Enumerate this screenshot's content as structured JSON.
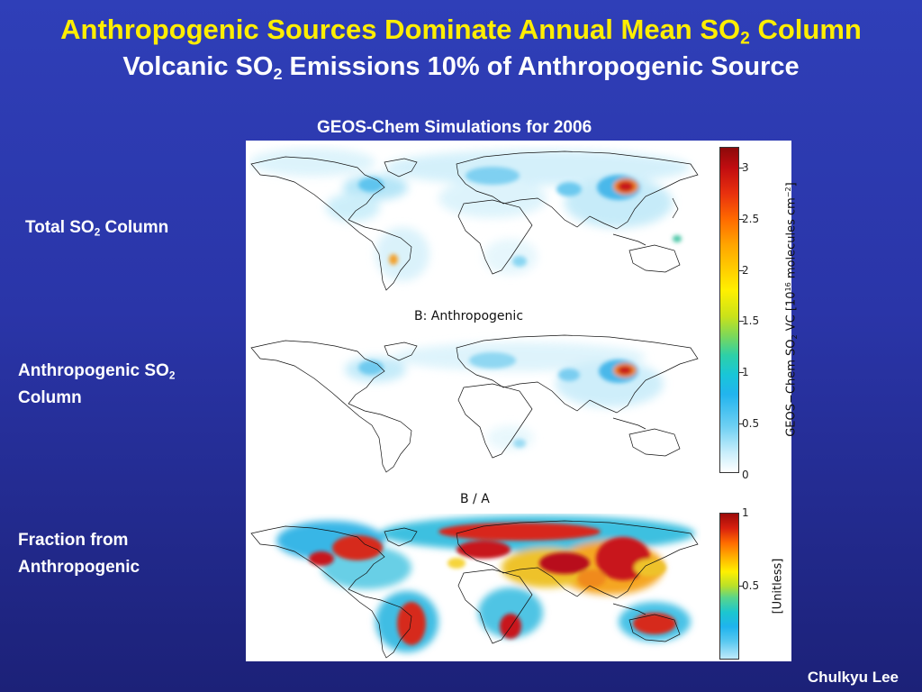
{
  "slide": {
    "title_line1": {
      "text": "Anthropogenic Sources Dominate Annual Mean SO",
      "sub": "2",
      "after": " Column"
    },
    "title_line2": {
      "text": "Volcanic SO",
      "sub": "2",
      "after": " Emissions 10% of Anthropogenic Source"
    },
    "subtitle": "GEOS-Chem Simulations for 2006",
    "author": "Chulkyu Lee",
    "colors": {
      "title": "#ffee00",
      "text": "#ffffff",
      "background_top": "#2f3fb8",
      "background_bottom": "#1c2178"
    }
  },
  "rows": [
    {
      "pre": "Total SO",
      "sub": "2",
      "post": " Column"
    },
    {
      "pre": "Anthropogenic SO",
      "sub": "2",
      "post": "",
      "line2": "Column"
    },
    {
      "pre": "Fraction from",
      "sub": "",
      "post": "",
      "line2": "Anthropogenic"
    }
  ],
  "panels": {
    "b_title": "B: Anthropogenic",
    "c_title": "B / A"
  },
  "colorbars": {
    "top": {
      "ticks": [
        "3",
        "2.5",
        "2",
        "1.5",
        "1",
        "0.5",
        "0"
      ],
      "label_pre": "GEOS−Chem SO",
      "label_sub": "2",
      "label_mid": " VC [10",
      "label_sup": "16",
      "label_post": " molecules cm",
      "label_sup2": "−2",
      "label_end": "]"
    },
    "bottom": {
      "ticks": [
        "1",
        "0.5"
      ],
      "label": "[Unitless]"
    }
  }
}
